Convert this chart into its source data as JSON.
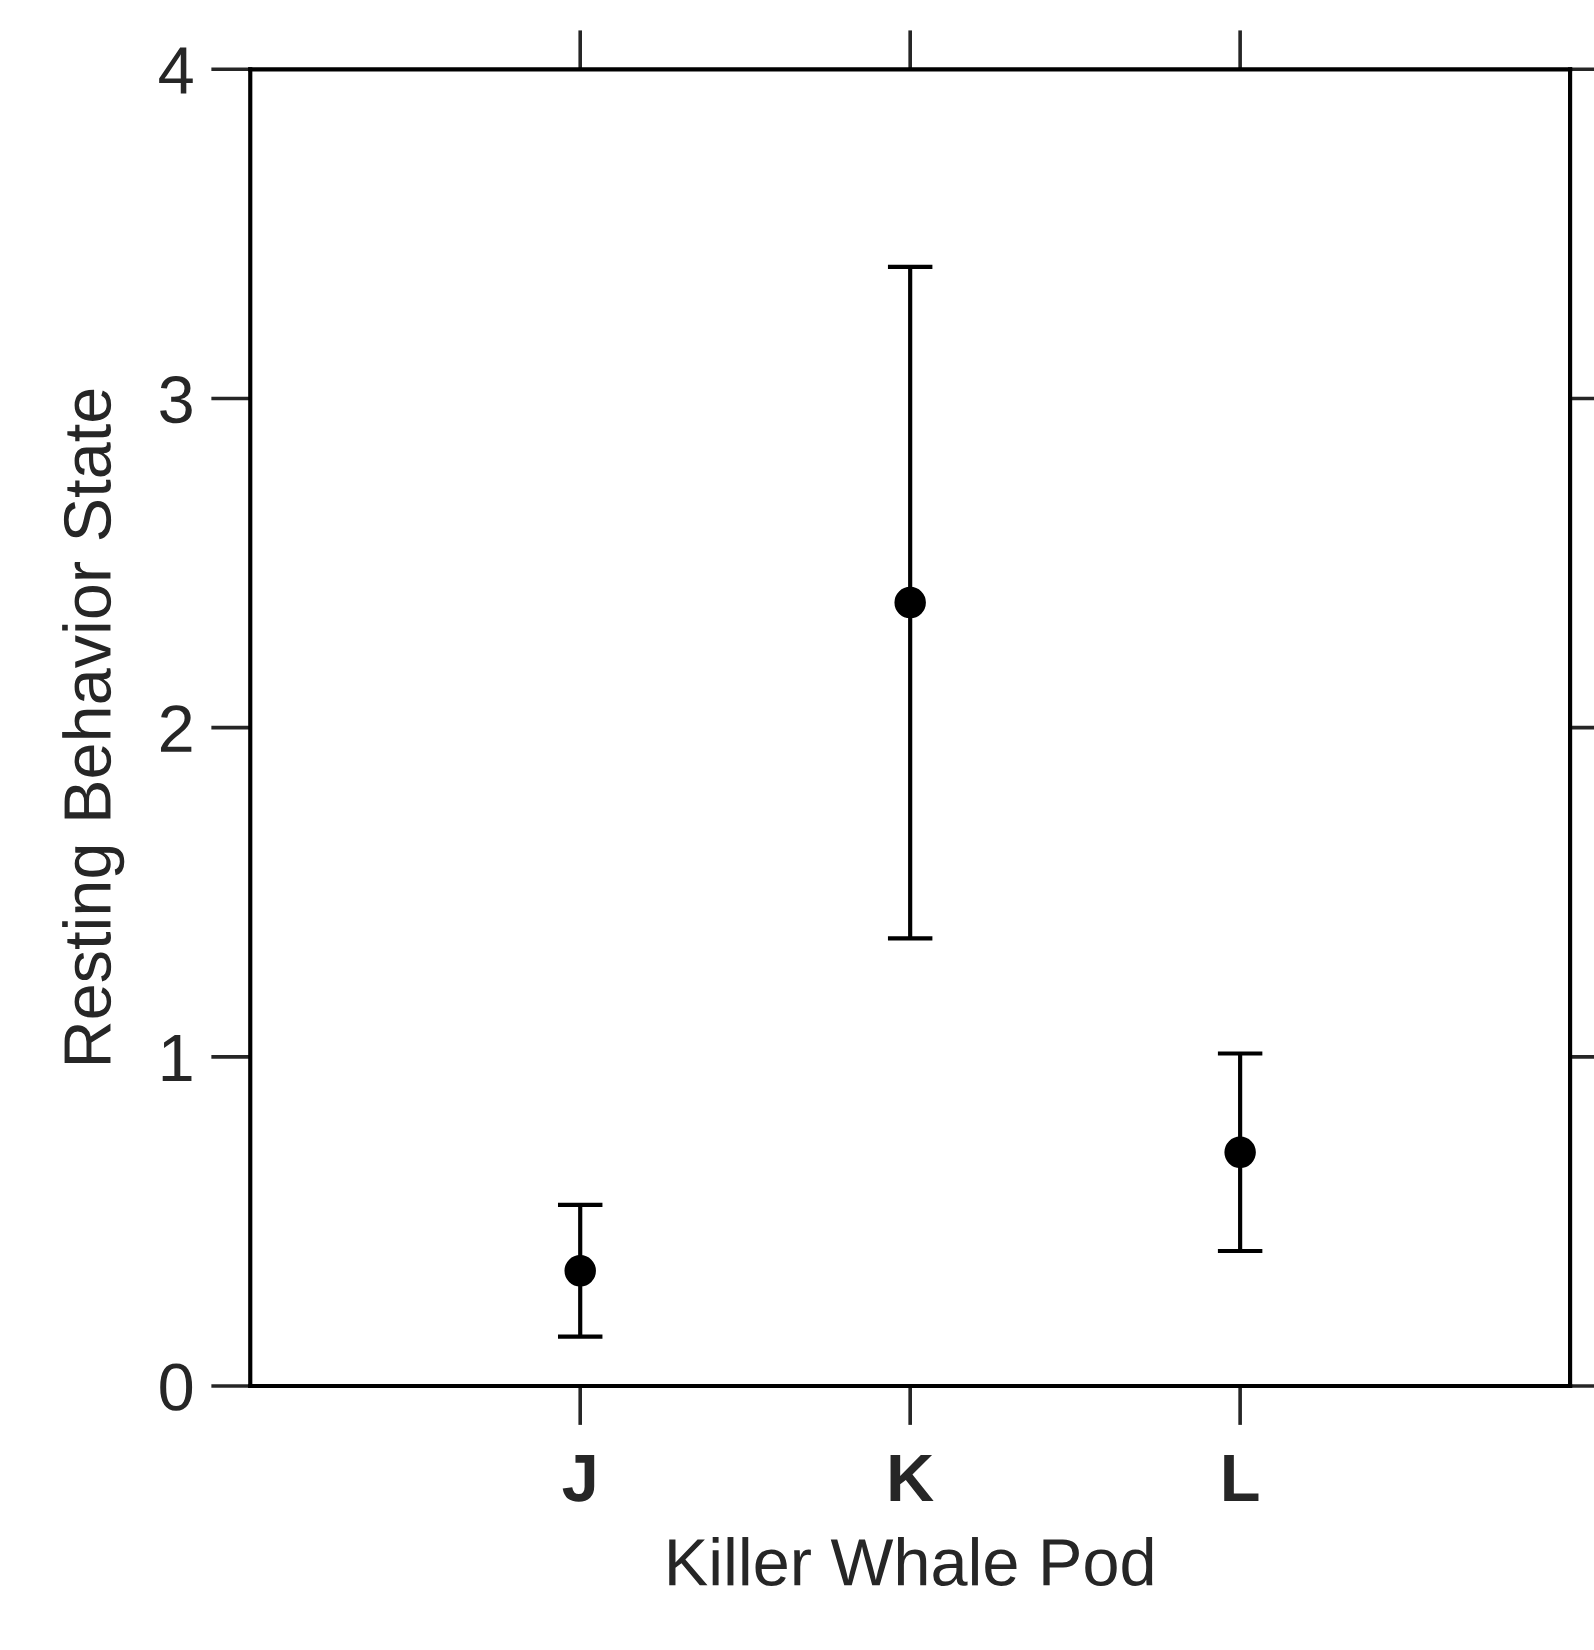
{
  "chart_data": {
    "type": "scatter",
    "xlabel": "Killer Whale Pod",
    "ylabel": "Resting Behavior State",
    "categories": [
      "J",
      "K",
      "L"
    ],
    "values": [
      0.35,
      2.38,
      0.71
    ],
    "errors": [
      0.2,
      1.02,
      0.3
    ],
    "color": "#000000",
    "marker": "circle",
    "ylim": [
      0,
      4
    ],
    "yticks": [
      0,
      1,
      2,
      3,
      4
    ]
  }
}
